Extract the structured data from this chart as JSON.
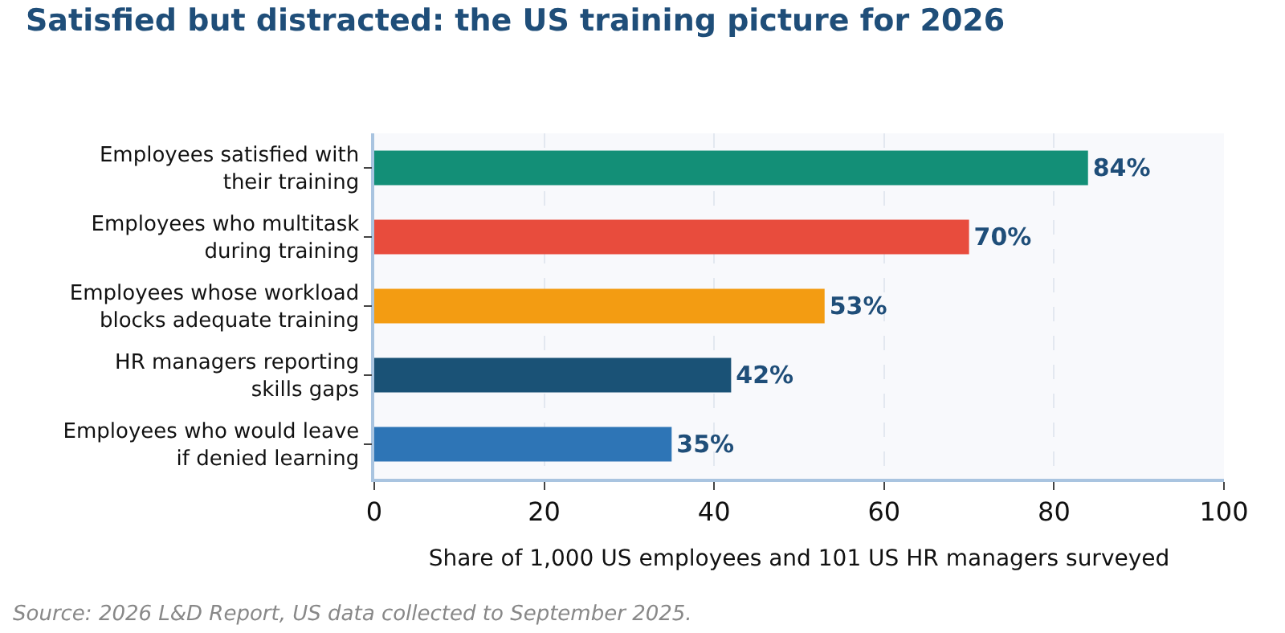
{
  "chart_data": {
    "type": "bar",
    "orientation": "horizontal",
    "title": "Satisfied but distracted: the US training picture for 2026",
    "categories": [
      "Employees satisfied with\ntheir training",
      "Employees who multitask\nduring training",
      "Employees whose workload\nblocks adequate training",
      "HR managers reporting\nskills gaps",
      "Employees who would leave\nif denied learning"
    ],
    "values": [
      84,
      70,
      53,
      42,
      35
    ],
    "colors": [
      "#138f77",
      "#e84c3d",
      "#f39c12",
      "#1a5276",
      "#2e75b6"
    ],
    "value_labels": [
      "84%",
      "70%",
      "53%",
      "42%",
      "35%"
    ],
    "xlim": [
      0,
      100
    ],
    "xticks": [
      0,
      20,
      40,
      60,
      80,
      100
    ],
    "xlabel": "Share of 1,000 US employees and 101 US HR managers surveyed",
    "grid": "x",
    "annotations": [
      "Source: 2026 L&D Report, US data collected to September 2025."
    ]
  }
}
